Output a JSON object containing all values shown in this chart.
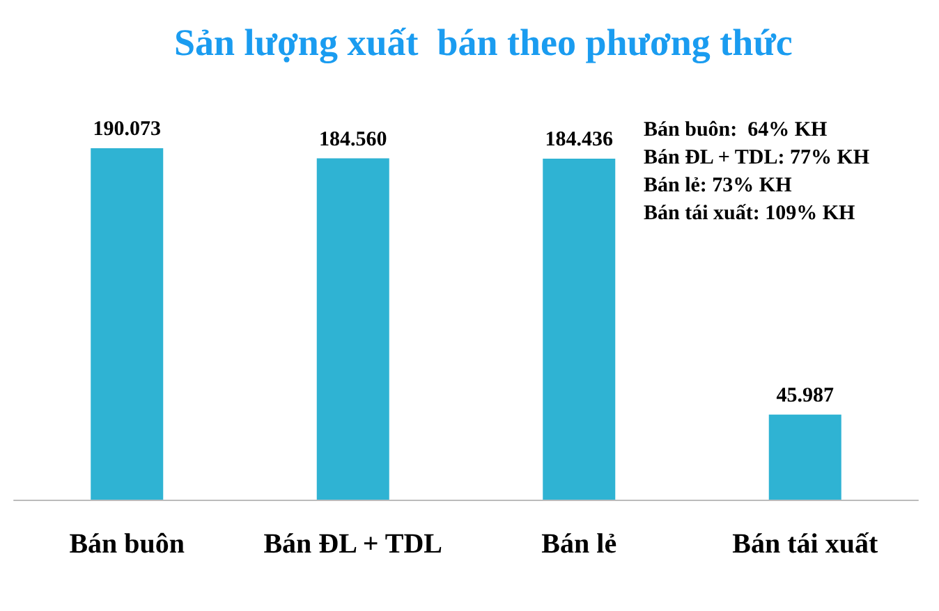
{
  "chart_data": {
    "type": "bar",
    "title": "Sản lượng xuất  bán theo phương thức",
    "categories": [
      "Bán buôn",
      "Bán ĐL + TDL",
      "Bán lẻ",
      "Bán tái xuất"
    ],
    "values": [
      190073,
      184560,
      184436,
      45987
    ],
    "value_labels": [
      "190.073",
      "184.560",
      "184.436",
      "45.987"
    ],
    "annotations": [
      "Bán buôn:  64% KH",
      "Bán ĐL + TDL: 77% KH",
      "Bán lẻ: 73% KH",
      "Bán tái xuất: 109% KH"
    ],
    "color": "#2fb3d3"
  }
}
